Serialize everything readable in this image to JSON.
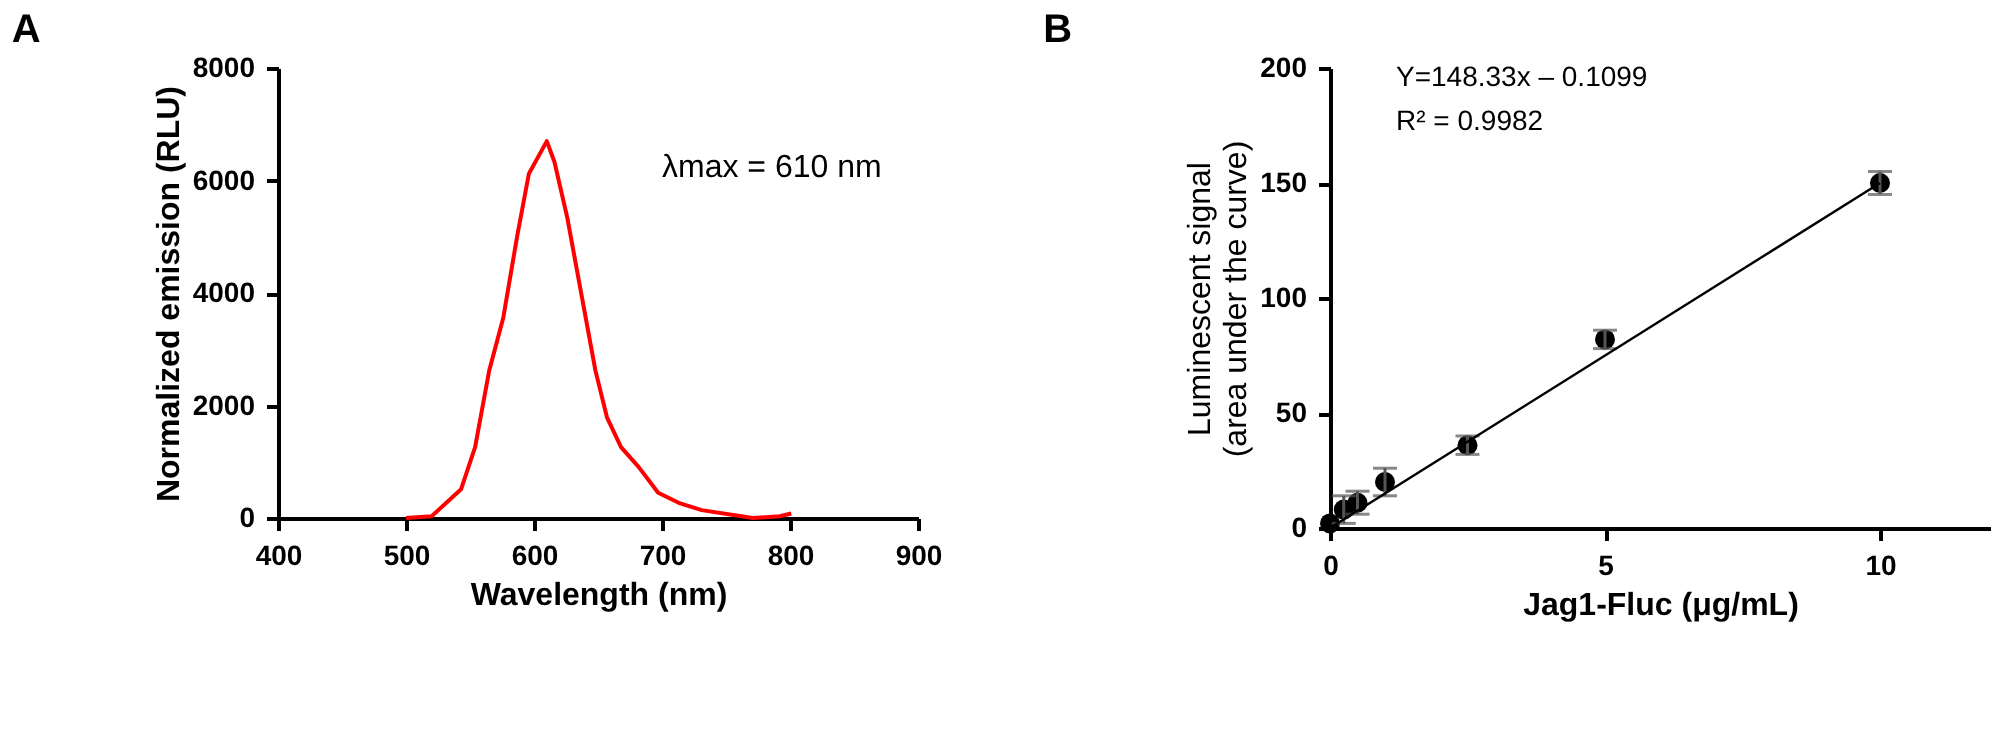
{
  "chart_data": [
    {
      "type": "line",
      "title": "A",
      "xlabel": "Wavelength (nm)",
      "ylabel": "Normalized emission (RLU)",
      "x": [
        500,
        520,
        543,
        554,
        565,
        576,
        587,
        596,
        610,
        616,
        626,
        637,
        648,
        657,
        668,
        682,
        697,
        713,
        731,
        762,
        771,
        792,
        801
      ],
      "series": [
        {
          "color": "#ff0000",
          "values": [
            0,
            30,
            510,
            1260,
            2620,
            3560,
            5030,
            6120,
            6700,
            6330,
            5340,
            3980,
            2620,
            1790,
            1260,
            900,
            450,
            270,
            140,
            30,
            0,
            30,
            80
          ]
        }
      ],
      "xlim": [
        400,
        900
      ],
      "xticks": [
        400,
        500,
        600,
        700,
        800,
        900
      ],
      "ylim": [
        0,
        8000
      ],
      "yticks": [
        0,
        2000,
        4000,
        6000,
        8000
      ],
      "annotations": [
        "λmax = 610 nm"
      ],
      "grid": false,
      "marker": "none",
      "line_style": "solid"
    },
    {
      "type": "scatter",
      "title": "B",
      "xlabel": "Jag1-Fluc (μg/mL)",
      "ylabel": "Luminescent signal\n(area under the curve)",
      "series": [
        {
          "type": "scatter",
          "color": "#000000",
          "marker": "circle",
          "x": [
            0,
            0.25,
            0.5,
            1,
            2.5,
            5,
            10
          ],
          "values": [
            2,
            8,
            11,
            20,
            36,
            82,
            150
          ],
          "errors": [
            null,
            6,
            5,
            6,
            4,
            4,
            5
          ]
        },
        {
          "type": "line",
          "color": "#000000",
          "marker": "none",
          "line_style": "solid",
          "x": [
            0,
            10
          ],
          "values": [
            0,
            150
          ]
        }
      ],
      "xlim": [
        0,
        12
      ],
      "xticks": [
        0,
        5,
        10
      ],
      "ylim": [
        0,
        200
      ],
      "yticks": [
        0,
        50,
        100,
        150,
        200
      ],
      "annotations": [
        "Y=148.33x – 0.1099",
        "R² = 0.9982"
      ],
      "grid": false
    }
  ]
}
